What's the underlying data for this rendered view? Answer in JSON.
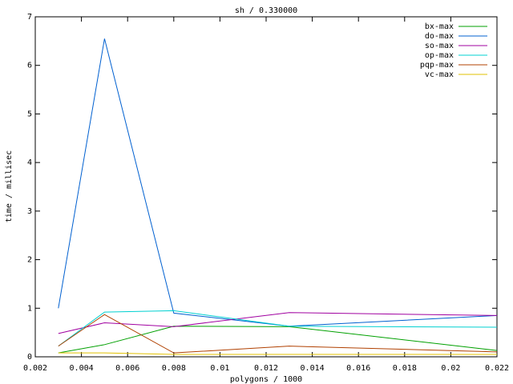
{
  "chart_data": {
    "type": "line",
    "title": "sh / 0.330000",
    "x_label": "polygons / 1000",
    "y_label": "time / millisec",
    "x": [
      0.003,
      0.005,
      0.008,
      0.013,
      0.022
    ],
    "series": [
      {
        "name": "bx-max",
        "color": "#00a000",
        "values": [
          0.08,
          0.25,
          0.63,
          0.62,
          0.13
        ]
      },
      {
        "name": "do-max",
        "color": "#0060d0",
        "values": [
          1.0,
          6.55,
          0.9,
          0.63,
          0.85
        ]
      },
      {
        "name": "so-max",
        "color": "#a000a0",
        "values": [
          0.48,
          0.7,
          0.62,
          0.91,
          0.85
        ]
      },
      {
        "name": "op-max",
        "color": "#00d0d0",
        "values": [
          0.22,
          0.92,
          0.95,
          0.63,
          0.61
        ]
      },
      {
        "name": "pqp-max",
        "color": "#b04000",
        "values": [
          0.22,
          0.87,
          0.08,
          0.22,
          0.1
        ]
      },
      {
        "name": "vc-max",
        "color": "#e0c000",
        "values": [
          0.08,
          0.08,
          0.05,
          0.05,
          0.05
        ]
      }
    ],
    "xlim": [
      0.002,
      0.022
    ],
    "xticks": [
      0.002,
      0.004,
      0.006,
      0.008,
      0.01,
      0.012,
      0.014,
      0.016,
      0.018,
      0.02,
      0.022
    ],
    "ylim": [
      0,
      7
    ],
    "yticks": [
      0,
      1,
      2,
      3,
      4,
      5,
      6,
      7
    ],
    "grid": false,
    "legend": "top-right"
  }
}
